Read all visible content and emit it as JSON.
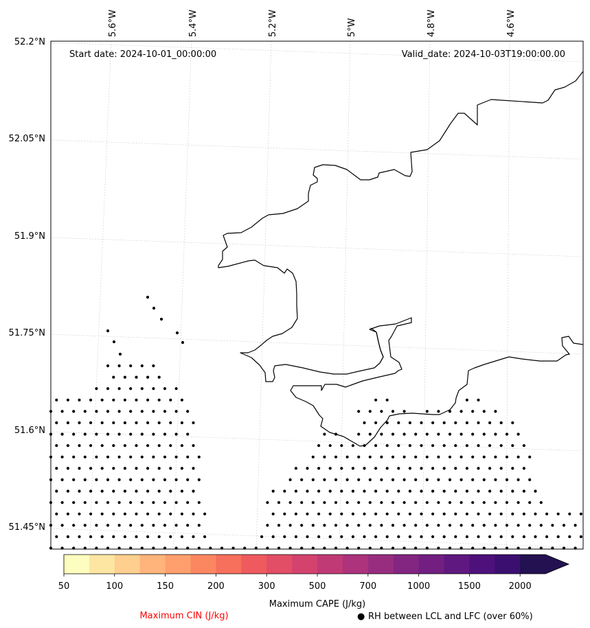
{
  "map": {
    "start_date": "Start date: 2024-10-01_00:00:00",
    "valid_date": "Valid_date: 2024-10-03T19:00:00.00",
    "lon_labels": [
      "5.6°W",
      "5.4°W",
      "5.2°W",
      "5°W",
      "4.8°W",
      "4.6°W"
    ],
    "lat_labels": [
      "52.2°N",
      "52.05°N",
      "51.9°N",
      "51.75°N",
      "51.6°N",
      "51.45°N"
    ]
  },
  "colorbar": {
    "label": "Maximum CAPE (J/kg)",
    "tick_labels": [
      "50",
      "100",
      "150",
      "200",
      "300",
      "500",
      "700",
      "1000",
      "1500",
      "2000"
    ],
    "colors": [
      "#fcfdbf",
      "#fde6a2",
      "#fecf8f",
      "#feb47b",
      "#fe9f6d",
      "#fb8761",
      "#f7705c",
      "#ef5a5f",
      "#e24e65",
      "#d3436e",
      "#c03a76",
      "#ac337c",
      "#982d80",
      "#832681",
      "#721f81",
      "#5f187f",
      "#4e117b",
      "#3b0f70",
      "#231151"
    ]
  },
  "legend": {
    "cin_label": "Maximum CIN (J/kg)",
    "cin_color": "#ff0000",
    "rh_marker": "●",
    "rh_label": "RH between LCL and LFC (over 60%)"
  }
}
